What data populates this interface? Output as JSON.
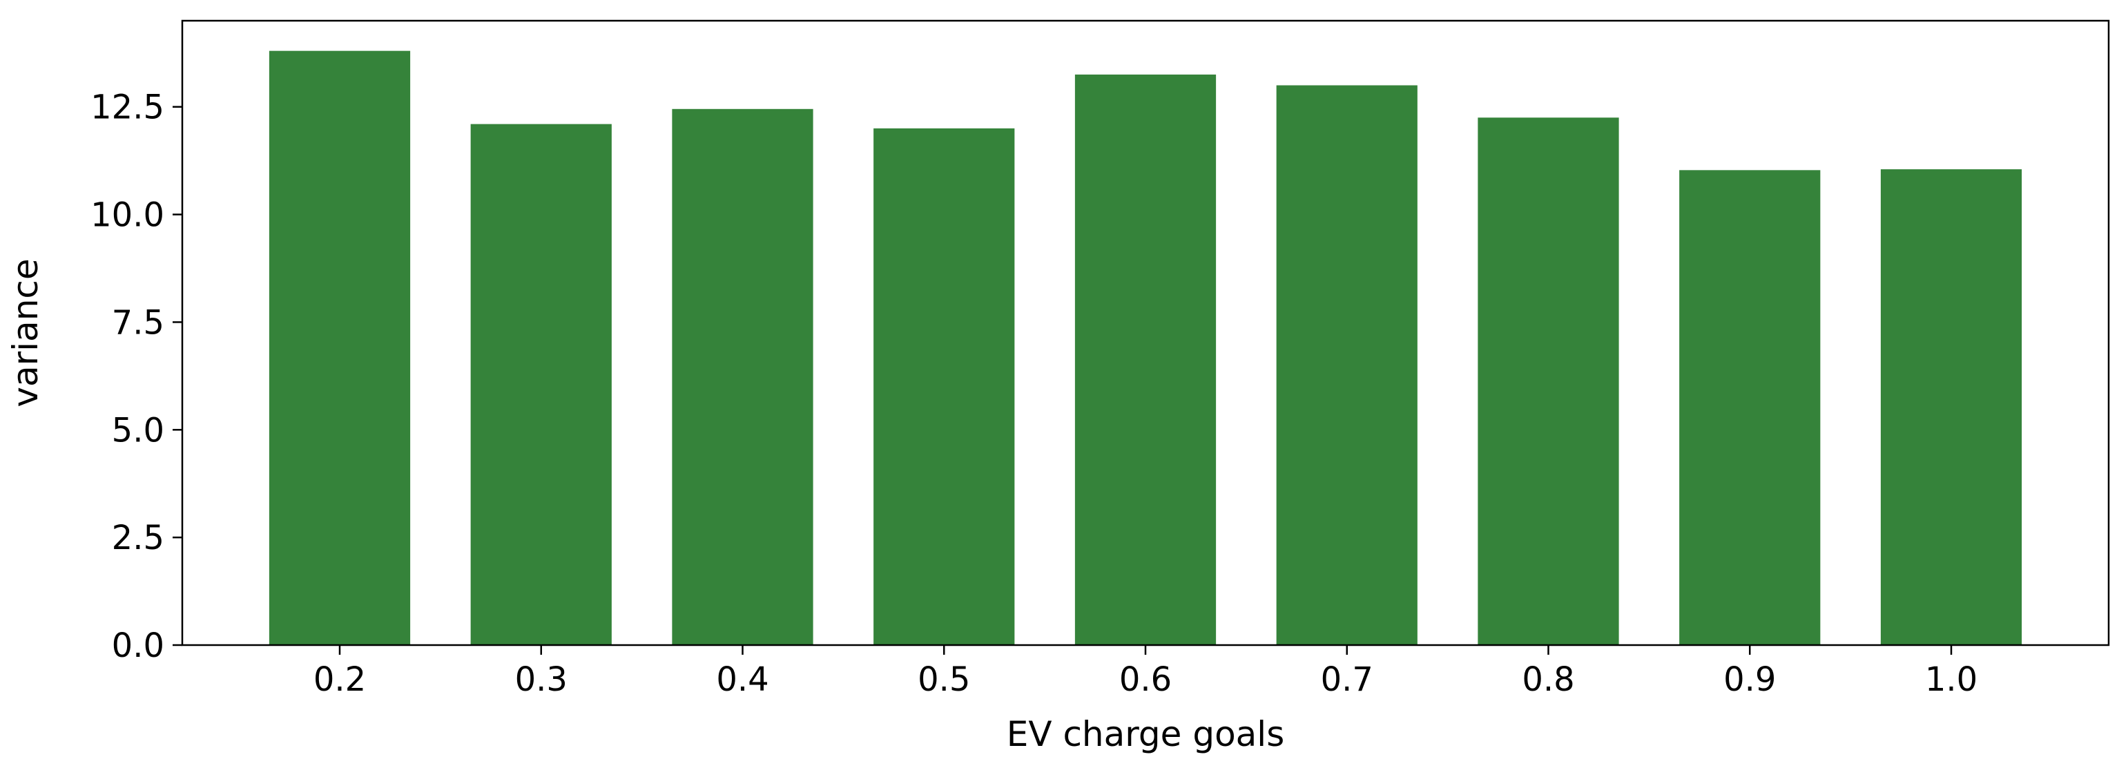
{
  "chart_data": {
    "type": "bar",
    "categories": [
      "0.2",
      "0.3",
      "0.4",
      "0.5",
      "0.6",
      "0.7",
      "0.8",
      "0.9",
      "1.0"
    ],
    "values": [
      13.8,
      12.1,
      12.45,
      12.0,
      13.25,
      13.0,
      12.25,
      11.03,
      11.05
    ],
    "title": "",
    "xlabel": "EV charge goals",
    "ylabel": "variance",
    "ylim": [
      0,
      14.5
    ],
    "yticks": [
      "0.0",
      "2.5",
      "5.0",
      "7.5",
      "10.0",
      "12.5"
    ],
    "ytick_values": [
      0,
      2.5,
      5.0,
      7.5,
      10.0,
      12.5
    ],
    "bar_color": "#35833a",
    "grid": false,
    "legend": "none"
  }
}
